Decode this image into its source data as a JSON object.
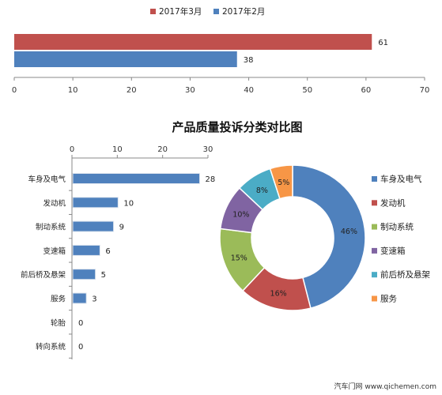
{
  "chart_data": [
    {
      "type": "bar",
      "orientation": "horizontal",
      "title": "",
      "series": [
        {
          "name": "2017年3月",
          "color": "#c0504d",
          "values": [
            61
          ]
        },
        {
          "name": "2017年2月",
          "color": "#4f81bd",
          "values": [
            38
          ]
        }
      ],
      "xlim": [
        0,
        70
      ],
      "xticks": [
        0,
        10,
        20,
        30,
        40,
        50,
        60,
        70
      ],
      "legend": "top-center",
      "grid": false
    },
    {
      "type": "bar",
      "orientation": "horizontal",
      "title": "产品质量投诉分类对比图",
      "categories": [
        "车身及电气",
        "发动机",
        "制动系统",
        "变速箱",
        "前后桥及悬架",
        "服务",
        "轮胎",
        "转向系统"
      ],
      "values": [
        28,
        10,
        9,
        6,
        5,
        3,
        0,
        0
      ],
      "color": "#4f81bd",
      "xlim": [
        0,
        30
      ],
      "xticks": [
        0,
        10,
        20,
        30
      ],
      "axis_position": "top",
      "grid": false
    },
    {
      "type": "pie",
      "style": "donut",
      "categories": [
        "车身及电气",
        "发动机",
        "制动系统",
        "变速箱",
        "前后桥及悬架",
        "服务"
      ],
      "values": [
        46,
        16,
        15,
        10,
        8,
        5
      ],
      "labels": [
        "46%",
        "16%",
        "15%",
        "10%",
        "8%",
        "5%"
      ],
      "colors": [
        "#4f81bd",
        "#c0504d",
        "#9bbb59",
        "#8064a2",
        "#4bacc6",
        "#f79646"
      ],
      "legend": "right"
    }
  ],
  "watermark": "汽车门网 www.qichemen.com"
}
